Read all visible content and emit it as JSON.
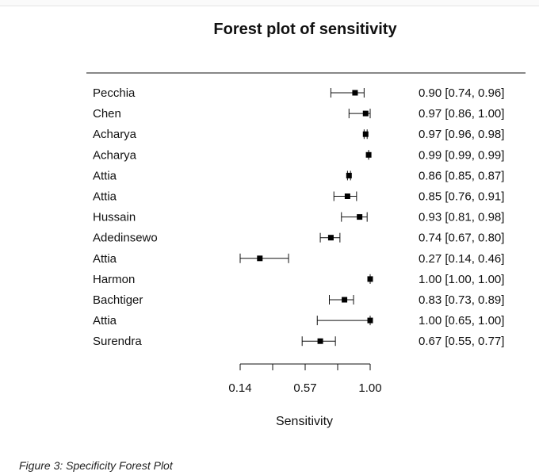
{
  "page": {
    "caption": "Figure 3: Specificity Forest Plot"
  },
  "chart_data": {
    "type": "forest",
    "title": "Forest plot of sensitivity",
    "xlabel": "Sensitivity",
    "xlim": [
      0.0,
      1.0
    ],
    "xticks": [
      0.14,
      0.57,
      1.0
    ],
    "xtick_labels": [
      "0.14",
      "0.57",
      "1.00"
    ],
    "studies": [
      {
        "name": "Pecchia",
        "est": 0.9,
        "lo": 0.74,
        "hi": 0.96,
        "label": "0.90 [0.74, 0.96]"
      },
      {
        "name": "Chen",
        "est": 0.97,
        "lo": 0.86,
        "hi": 1.0,
        "label": "0.97 [0.86, 1.00]"
      },
      {
        "name": "Acharya",
        "est": 0.97,
        "lo": 0.96,
        "hi": 0.98,
        "label": "0.97 [0.96, 0.98]"
      },
      {
        "name": "Acharya",
        "est": 0.99,
        "lo": 0.99,
        "hi": 0.99,
        "label": "0.99 [0.99, 0.99]"
      },
      {
        "name": "Attia",
        "est": 0.86,
        "lo": 0.85,
        "hi": 0.87,
        "label": "0.86 [0.85, 0.87]"
      },
      {
        "name": "Attia",
        "est": 0.85,
        "lo": 0.76,
        "hi": 0.91,
        "label": "0.85 [0.76, 0.91]"
      },
      {
        "name": "Hussain",
        "est": 0.93,
        "lo": 0.81,
        "hi": 0.98,
        "label": "0.93 [0.81, 0.98]"
      },
      {
        "name": "Adedinsewo",
        "est": 0.74,
        "lo": 0.67,
        "hi": 0.8,
        "label": "0.74 [0.67, 0.80]"
      },
      {
        "name": "Attia",
        "est": 0.27,
        "lo": 0.14,
        "hi": 0.46,
        "label": "0.27 [0.14, 0.46]"
      },
      {
        "name": "Harmon",
        "est": 1.0,
        "lo": 1.0,
        "hi": 1.0,
        "label": "1.00 [1.00, 1.00]"
      },
      {
        "name": "Bachtiger",
        "est": 0.83,
        "lo": 0.73,
        "hi": 0.89,
        "label": "0.83 [0.73, 0.89]"
      },
      {
        "name": "Attia",
        "est": 1.0,
        "lo": 0.65,
        "hi": 1.0,
        "label": "1.00 [0.65, 1.00]"
      },
      {
        "name": "Surendra",
        "est": 0.67,
        "lo": 0.55,
        "hi": 0.77,
        "label": "0.67 [0.55, 0.77]"
      }
    ]
  }
}
